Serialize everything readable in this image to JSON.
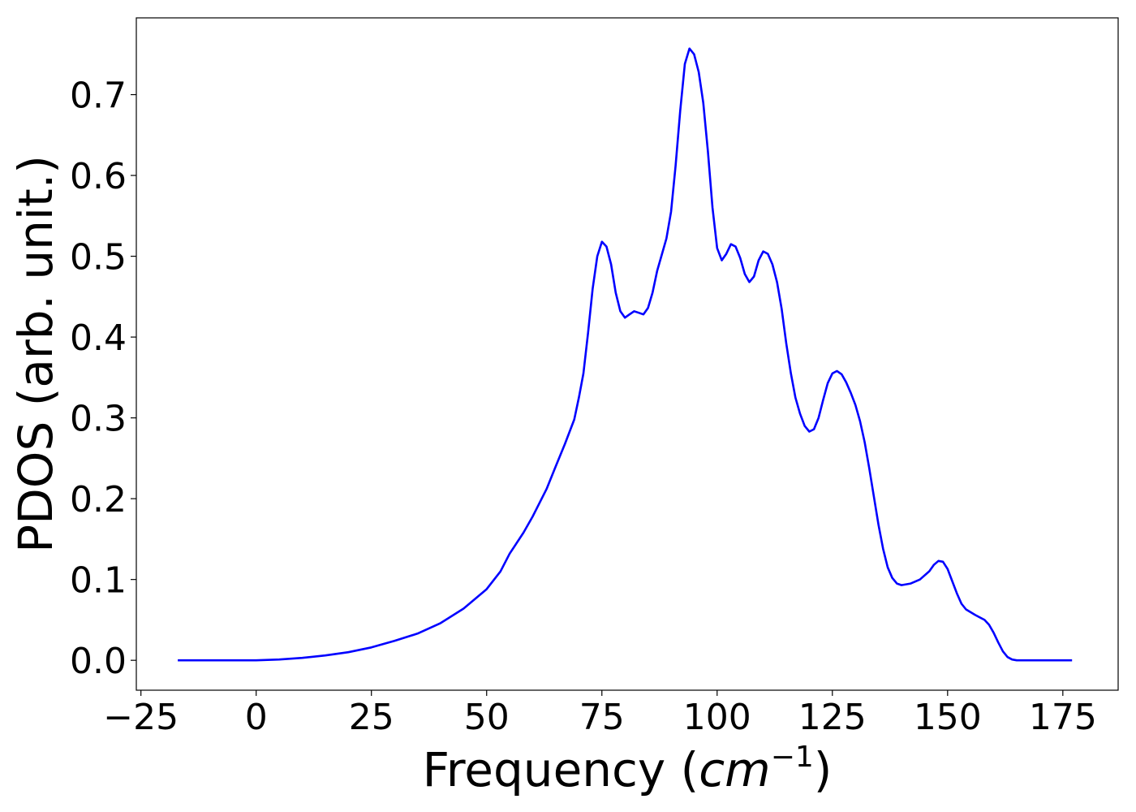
{
  "chart_data": {
    "type": "line",
    "xlabel": "Frequency (",
    "xlabel_math": "cm",
    "xlabel_sup": "−1",
    "xlabel_end": ")",
    "ylabel": "PDOS (arb. unit.)",
    "xlim": [
      -26,
      187
    ],
    "ylim": [
      -0.037,
      0.795
    ],
    "xticks": [
      -25,
      0,
      25,
      50,
      75,
      100,
      125,
      150,
      175
    ],
    "xtick_labels": [
      "−25",
      "0",
      "25",
      "50",
      "75",
      "100",
      "125",
      "150",
      "175"
    ],
    "yticks": [
      0.0,
      0.1,
      0.2,
      0.3,
      0.4,
      0.5,
      0.6,
      0.7
    ],
    "ytick_labels": [
      "0.0",
      "0.1",
      "0.2",
      "0.3",
      "0.4",
      "0.5",
      "0.6",
      "0.7"
    ],
    "grid": false,
    "line_color": "#0000ff",
    "series": [
      {
        "x": [
          -17,
          0,
          5,
          10,
          15,
          20,
          25,
          30,
          35,
          40,
          45,
          50,
          53,
          55,
          58,
          60,
          63,
          65,
          67,
          69,
          70,
          71,
          72,
          73,
          74,
          75,
          76,
          77,
          78,
          79,
          80,
          81,
          82,
          83,
          84,
          85,
          86,
          87,
          88,
          89,
          90,
          91,
          92,
          93,
          94,
          95,
          96,
          97,
          98,
          99,
          100,
          101,
          102,
          103,
          104,
          105,
          106,
          107,
          108,
          109,
          110,
          111,
          112,
          113,
          114,
          115,
          116,
          117,
          118,
          119,
          120,
          121,
          122,
          123,
          124,
          125,
          126,
          127,
          128,
          129,
          130,
          131,
          132,
          133,
          134,
          135,
          136,
          137,
          138,
          139,
          140,
          142,
          144,
          146,
          147,
          148,
          149,
          150,
          151,
          152,
          153,
          154,
          156,
          158,
          159,
          160,
          161,
          162,
          163,
          164,
          165,
          167,
          170,
          177
        ],
        "y": [
          0.0,
          0.0,
          0.001,
          0.003,
          0.006,
          0.01,
          0.016,
          0.024,
          0.033,
          0.046,
          0.064,
          0.088,
          0.11,
          0.132,
          0.158,
          0.178,
          0.212,
          0.24,
          0.268,
          0.298,
          0.325,
          0.355,
          0.405,
          0.46,
          0.5,
          0.518,
          0.512,
          0.49,
          0.455,
          0.432,
          0.424,
          0.428,
          0.432,
          0.43,
          0.428,
          0.436,
          0.455,
          0.482,
          0.502,
          0.522,
          0.555,
          0.612,
          0.68,
          0.738,
          0.757,
          0.75,
          0.728,
          0.69,
          0.63,
          0.56,
          0.51,
          0.495,
          0.503,
          0.515,
          0.512,
          0.498,
          0.478,
          0.468,
          0.475,
          0.495,
          0.506,
          0.503,
          0.49,
          0.468,
          0.435,
          0.392,
          0.355,
          0.325,
          0.305,
          0.29,
          0.283,
          0.286,
          0.3,
          0.322,
          0.343,
          0.355,
          0.358,
          0.354,
          0.344,
          0.331,
          0.316,
          0.296,
          0.27,
          0.238,
          0.203,
          0.168,
          0.138,
          0.115,
          0.102,
          0.095,
          0.093,
          0.095,
          0.1,
          0.11,
          0.118,
          0.123,
          0.122,
          0.113,
          0.098,
          0.083,
          0.07,
          0.063,
          0.056,
          0.05,
          0.044,
          0.034,
          0.022,
          0.011,
          0.004,
          0.001,
          0.0,
          0.0,
          0.0,
          0.0
        ]
      }
    ]
  }
}
